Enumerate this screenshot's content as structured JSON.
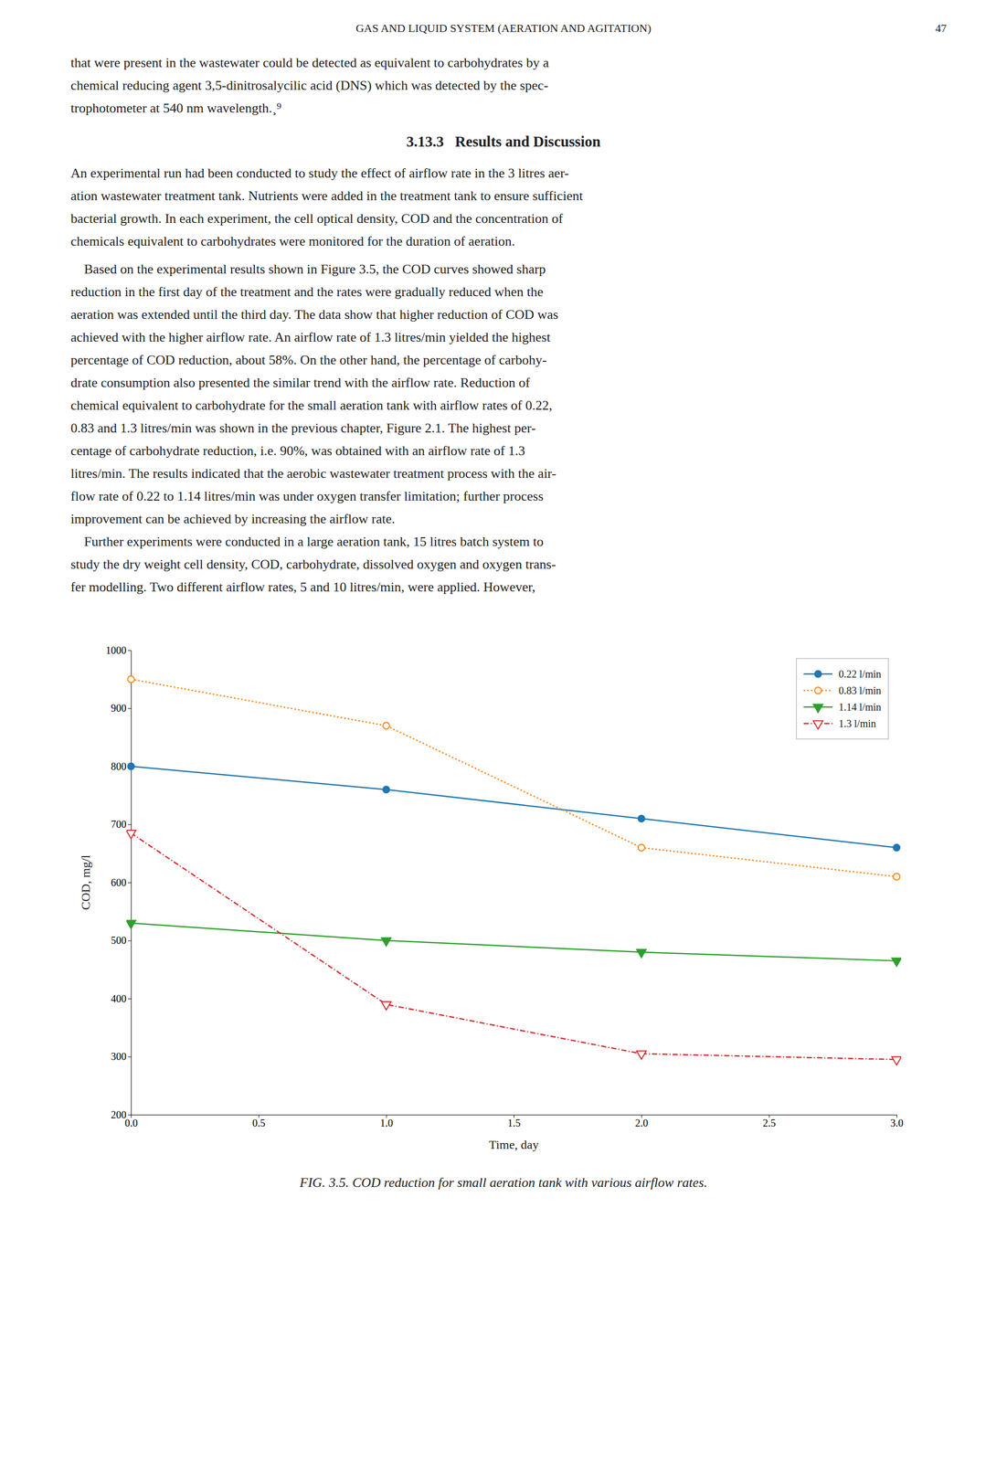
{
  "chart_data": {
    "type": "line",
    "title": "FIG. 3.5. COD reduction for small aeration tank with various airflow rates.",
    "xlabel": "Time, day",
    "ylabel": "COD, mg/l",
    "x": [
      0.0,
      1.0,
      2.0,
      3.0
    ],
    "series": [
      {
        "name": "0.22 l/min",
        "values": [
          800,
          760,
          710,
          660
        ],
        "marker": "circle",
        "line_style": "solid"
      },
      {
        "name": "0.83 l/min",
        "values": [
          950,
          870,
          660,
          610
        ],
        "marker": "open-circle",
        "line_style": "dotted"
      },
      {
        "name": "1.14 l/min",
        "values": [
          530,
          500,
          480,
          465
        ],
        "marker": "triangle-down",
        "line_style": "solid"
      },
      {
        "name": "1.3 l/min",
        "values": [
          685,
          390,
          305,
          295
        ],
        "marker": "open-triangle-down",
        "line_style": "dashdot"
      }
    ],
    "xlim": [
      0.0,
      3.0
    ],
    "ylim": [
      200,
      1000
    ],
    "xticks": [
      {
        "value": 0.0,
        "label": "0.0"
      },
      {
        "value": 0.5,
        "label": "0.5"
      },
      {
        "value": 1.0,
        "label": "1.0"
      },
      {
        "value": 1.5,
        "label": "1.5"
      },
      {
        "value": 2.0,
        "label": "2.0"
      },
      {
        "value": 2.5,
        "label": "2.5"
      },
      {
        "value": 3.0,
        "label": "3.0"
      }
    ],
    "yticks": [
      200,
      300,
      400,
      500,
      600,
      700,
      800,
      900,
      1000
    ],
    "grid": false,
    "legend": "upper right"
  },
  "page": {
    "header": "GAS AND LIQUID SYSTEM (AERATION AND AGITATION)",
    "page_number": "47",
    "body_text": [
      "that were present in the wastewater could be detected as equivalent to carbohydrates by a",
      "chemical reducing agent 3,5-dinitrosalycilic acid (DNS) which was detected by the spec-",
      "trophotometer at 540 nm wavelength.¸⁹"
    ],
    "section_heading": "3.13.3   Results and Discussion",
    "para1": [
      "An experimental run had been conducted to study the effect of airflow rate in the 3 litres aer-",
      "ation wastewater treatment tank. Nutrients were added in the treatment tank to ensure sufficient",
      "bacterial growth. In each experiment, the cell optical density, COD and the concentration of",
      "chemicals equivalent to carbohydrates were monitored for the duration of aeration."
    ],
    "para2": [
      "    Based on the experimental results shown in Figure 3.5, the COD curves showed sharp",
      "reduction in the first day of the treatment and the rates were gradually reduced when the",
      "aeration was extended until the third day. The data show that higher reduction of COD was",
      "achieved with the higher airflow rate. An airflow rate of 1.3 litres/min yielded the highest",
      "percentage of COD reduction, about 58%. On the other hand, the percentage of carbohy-",
      "drate consumption also presented the similar trend with the airflow rate. Reduction of",
      "chemical equivalent to carbohydrate for the small aeration tank with airflow rates of 0.22,",
      "0.83 and 1.3 litres/min was shown in the previous chapter, Figure 2.1. The highest per-",
      "centage of carbohydrate reduction, i.e. 90%, was obtained with an airflow rate of 1.3",
      "litres/min. The results indicated that the aerobic wastewater treatment process with the air-",
      "flow rate of 0.22 to 1.14 litres/min was under oxygen transfer limitation; further process",
      "improvement can be achieved by increasing the airflow rate.",
      "    Further experiments were conducted in a large aeration tank, 15 litres batch system to",
      "study the dry weight cell density, COD, carbohydrate, dissolved oxygen and oxygen trans-",
      "fer modelling. Two different airflow rates, 5 and 10 litres/min, were applied. However,"
    ]
  }
}
